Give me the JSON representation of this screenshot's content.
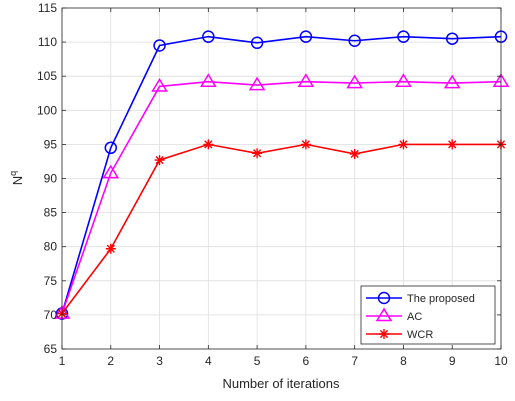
{
  "chart_data": {
    "type": "line",
    "title": "",
    "xlabel": "Number of iterations",
    "ylabel_base": "N",
    "ylabel_sup": "q",
    "x": [
      1,
      2,
      3,
      4,
      5,
      6,
      7,
      8,
      9,
      10
    ],
    "xlim": [
      1,
      10
    ],
    "ylim": [
      65,
      115
    ],
    "xticks": [
      1,
      2,
      3,
      4,
      5,
      6,
      7,
      8,
      9,
      10
    ],
    "yticks": [
      65,
      70,
      75,
      80,
      85,
      90,
      95,
      100,
      105,
      110,
      115
    ],
    "grid": true,
    "legend_position": "bottom-right",
    "series": [
      {
        "name": "The proposed",
        "color": "#0000ff",
        "marker": "circle",
        "values": [
          70.2,
          94.5,
          109.5,
          110.8,
          109.9,
          110.8,
          110.2,
          110.8,
          110.5,
          110.8
        ]
      },
      {
        "name": "AC",
        "color": "#ff00ff",
        "marker": "triangle",
        "values": [
          70.2,
          90.8,
          103.5,
          104.2,
          103.7,
          104.2,
          104.0,
          104.2,
          104.0,
          104.2
        ]
      },
      {
        "name": "WCR",
        "color": "#ff0000",
        "marker": "asterisk",
        "values": [
          70.2,
          79.7,
          92.7,
          95.0,
          93.7,
          95.0,
          93.6,
          95.0,
          95.0,
          95.0
        ]
      }
    ]
  }
}
